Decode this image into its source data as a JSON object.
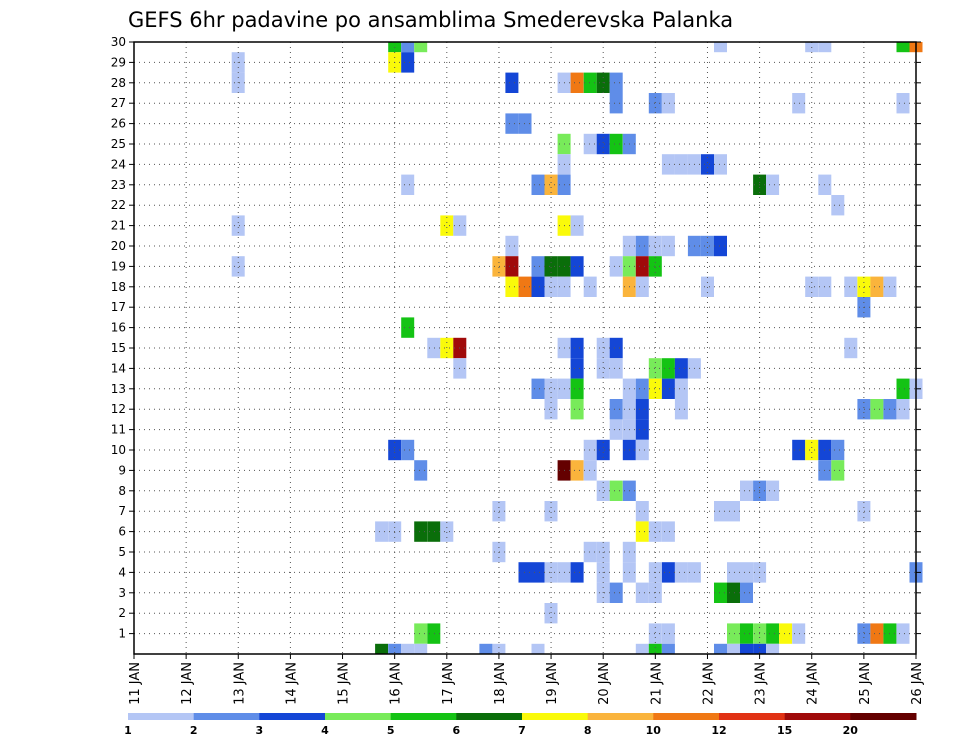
{
  "chart_data": {
    "type": "heatmap",
    "title": "GEFS 6hr padavine po ansamblima Smederevska Palanka",
    "y_ticks": [
      "1",
      "2",
      "3",
      "4",
      "5",
      "6",
      "7",
      "8",
      "9",
      "10",
      "11",
      "12",
      "13",
      "14",
      "15",
      "16",
      "17",
      "18",
      "19",
      "20",
      "21",
      "22",
      "23",
      "24",
      "25",
      "26",
      "27",
      "28",
      "29",
      "30"
    ],
    "x_ticks": [
      "11 JAN",
      "12 JAN",
      "13 JAN",
      "14 JAN",
      "15 JAN",
      "16 JAN",
      "17 JAN",
      "18 JAN",
      "19 JAN",
      "20 JAN",
      "21 JAN",
      "22 JAN",
      "23 JAN",
      "24 JAN",
      "25 JAN",
      "26 JAN"
    ],
    "xlim_days": [
      11,
      26
    ],
    "ylim": [
      0,
      30
    ],
    "grid": true,
    "legend": {
      "position": "bottom",
      "labels": [
        "1",
        "2",
        "3",
        "4",
        "5",
        "6",
        "7",
        "8",
        "10",
        "12",
        "15",
        "20"
      ],
      "colors": [
        "#b4c6f5",
        "#5f8de8",
        "#1446d6",
        "#78eb5a",
        "#14c314",
        "#0a6e0a",
        "#fafa0a",
        "#fab43c",
        "#f07814",
        "#e13214",
        "#a00a0a",
        "#640000"
      ]
    },
    "cells": [
      [
        30,
        16,
        5
      ],
      [
        30,
        16.25,
        2
      ],
      [
        30,
        16.5,
        4
      ],
      [
        30,
        22.25,
        1
      ],
      [
        30,
        24,
        1
      ],
      [
        30,
        24.25,
        1
      ],
      [
        30,
        25.75,
        5
      ],
      [
        30,
        26,
        9
      ],
      [
        29,
        13,
        1
      ],
      [
        29,
        16,
        7
      ],
      [
        29,
        16.25,
        3
      ],
      [
        28,
        13,
        1
      ],
      [
        28,
        18.25,
        3
      ],
      [
        28,
        19.25,
        1
      ],
      [
        28,
        19.5,
        9
      ],
      [
        28,
        19.75,
        5
      ],
      [
        28,
        20,
        6
      ],
      [
        28,
        20.25,
        2
      ],
      [
        27,
        20.25,
        2
      ],
      [
        27,
        21,
        2
      ],
      [
        27,
        21.25,
        1
      ],
      [
        27,
        23.75,
        1
      ],
      [
        27,
        25.75,
        1
      ],
      [
        26,
        18.25,
        2
      ],
      [
        26,
        18.5,
        2
      ],
      [
        25,
        19.25,
        4
      ],
      [
        25,
        19.75,
        1
      ],
      [
        25,
        20,
        3
      ],
      [
        25,
        20.25,
        5
      ],
      [
        25,
        20.5,
        2
      ],
      [
        24,
        19.25,
        1
      ],
      [
        24,
        21.25,
        1
      ],
      [
        24,
        21.5,
        1
      ],
      [
        24,
        21.75,
        1
      ],
      [
        24,
        22,
        3
      ],
      [
        24,
        22.25,
        1
      ],
      [
        23,
        16.25,
        1
      ],
      [
        23,
        18.75,
        2
      ],
      [
        23,
        19,
        8
      ],
      [
        23,
        19.25,
        2
      ],
      [
        23,
        23,
        6
      ],
      [
        23,
        23.25,
        1
      ],
      [
        23,
        24.25,
        1
      ],
      [
        22,
        24.5,
        1
      ],
      [
        21,
        13,
        1
      ],
      [
        21,
        17,
        7
      ],
      [
        21,
        17.25,
        1
      ],
      [
        21,
        19.25,
        7
      ],
      [
        21,
        19.5,
        1
      ],
      [
        20,
        18.25,
        1
      ],
      [
        20,
        20.5,
        1
      ],
      [
        20,
        20.75,
        2
      ],
      [
        20,
        21,
        1
      ],
      [
        20,
        21.25,
        1
      ],
      [
        20,
        21.75,
        2
      ],
      [
        20,
        22,
        2
      ],
      [
        20,
        22.25,
        3
      ],
      [
        19,
        13,
        1
      ],
      [
        19,
        18,
        8
      ],
      [
        19,
        18.25,
        11
      ],
      [
        19,
        18.75,
        2
      ],
      [
        19,
        19,
        6
      ],
      [
        19,
        19.25,
        6
      ],
      [
        19,
        19.5,
        3
      ],
      [
        19,
        20.25,
        1
      ],
      [
        19,
        20.5,
        4
      ],
      [
        19,
        20.75,
        11
      ],
      [
        19,
        21,
        5
      ],
      [
        18,
        18.25,
        7
      ],
      [
        18,
        18.5,
        9
      ],
      [
        18,
        18.75,
        3
      ],
      [
        18,
        19,
        1
      ],
      [
        18,
        19.25,
        1
      ],
      [
        18,
        19.75,
        1
      ],
      [
        18,
        20.5,
        8
      ],
      [
        18,
        20.75,
        1
      ],
      [
        18,
        22,
        1
      ],
      [
        18,
        24,
        1
      ],
      [
        18,
        24.25,
        1
      ],
      [
        18,
        24.75,
        1
      ],
      [
        18,
        25,
        7
      ],
      [
        18,
        25.25,
        8
      ],
      [
        18,
        25.5,
        1
      ],
      [
        17,
        25,
        2
      ],
      [
        16,
        16.25,
        5
      ],
      [
        15,
        16.75,
        1
      ],
      [
        15,
        17,
        7
      ],
      [
        15,
        17.25,
        11
      ],
      [
        15,
        19.25,
        1
      ],
      [
        15,
        19.5,
        3
      ],
      [
        15,
        20,
        1
      ],
      [
        15,
        20.25,
        3
      ],
      [
        15,
        24.75,
        1
      ],
      [
        14,
        17.25,
        1
      ],
      [
        14,
        19.5,
        3
      ],
      [
        14,
        20,
        1
      ],
      [
        14,
        20.25,
        1
      ],
      [
        14,
        21,
        4
      ],
      [
        14,
        21.25,
        5
      ],
      [
        14,
        21.5,
        3
      ],
      [
        14,
        21.75,
        1
      ],
      [
        13,
        18.75,
        2
      ],
      [
        13,
        19,
        1
      ],
      [
        13,
        19.25,
        1
      ],
      [
        13,
        19.5,
        5
      ],
      [
        13,
        20.5,
        1
      ],
      [
        13,
        20.75,
        2
      ],
      [
        13,
        21,
        7
      ],
      [
        13,
        21.25,
        3
      ],
      [
        13,
        21.5,
        1
      ],
      [
        13,
        25.75,
        5
      ],
      [
        13,
        26,
        1
      ],
      [
        12,
        19,
        1
      ],
      [
        12,
        19.5,
        4
      ],
      [
        12,
        20.25,
        2
      ],
      [
        12,
        20.5,
        1
      ],
      [
        12,
        20.75,
        3
      ],
      [
        12,
        21.5,
        1
      ],
      [
        12,
        25,
        2
      ],
      [
        12,
        25.25,
        4
      ],
      [
        12,
        25.5,
        2
      ],
      [
        12,
        25.75,
        1
      ],
      [
        11,
        20.25,
        1
      ],
      [
        11,
        20.5,
        1
      ],
      [
        11,
        20.75,
        3
      ],
      [
        10,
        16,
        3
      ],
      [
        10,
        16.25,
        2
      ],
      [
        10,
        19.75,
        1
      ],
      [
        10,
        20,
        3
      ],
      [
        10,
        20.5,
        3
      ],
      [
        10,
        20.75,
        1
      ],
      [
        10,
        23.75,
        3
      ],
      [
        10,
        24,
        7
      ],
      [
        10,
        24.25,
        3
      ],
      [
        10,
        24.5,
        2
      ],
      [
        9,
        16.5,
        2
      ],
      [
        9,
        19.25,
        12
      ],
      [
        9,
        19.5,
        8
      ],
      [
        9,
        19.75,
        1
      ],
      [
        9,
        24.25,
        2
      ],
      [
        9,
        24.5,
        4
      ],
      [
        8,
        20,
        1
      ],
      [
        8,
        20.25,
        4
      ],
      [
        8,
        20.5,
        2
      ],
      [
        8,
        22.75,
        1
      ],
      [
        8,
        23,
        2
      ],
      [
        8,
        23.25,
        1
      ],
      [
        7,
        18,
        1
      ],
      [
        7,
        19,
        1
      ],
      [
        7,
        20.75,
        1
      ],
      [
        7,
        22.25,
        1
      ],
      [
        7,
        22.5,
        1
      ],
      [
        7,
        25,
        1
      ],
      [
        6,
        15.75,
        1
      ],
      [
        6,
        16,
        1
      ],
      [
        6,
        16.5,
        6
      ],
      [
        6,
        16.75,
        6
      ],
      [
        6,
        17,
        1
      ],
      [
        6,
        20.75,
        7
      ],
      [
        6,
        21,
        1
      ],
      [
        6,
        21.25,
        1
      ],
      [
        5,
        18,
        1
      ],
      [
        5,
        19.75,
        1
      ],
      [
        5,
        20,
        1
      ],
      [
        5,
        20.5,
        1
      ],
      [
        4,
        18.5,
        3
      ],
      [
        4,
        18.75,
        3
      ],
      [
        4,
        19,
        1
      ],
      [
        4,
        19.25,
        1
      ],
      [
        4,
        19.5,
        3
      ],
      [
        4,
        20,
        1
      ],
      [
        4,
        20.5,
        1
      ],
      [
        4,
        21,
        1
      ],
      [
        4,
        21.25,
        3
      ],
      [
        4,
        21.5,
        1
      ],
      [
        4,
        21.75,
        1
      ],
      [
        4,
        22.5,
        1
      ],
      [
        4,
        22.75,
        1
      ],
      [
        4,
        23,
        1
      ],
      [
        4,
        26,
        2
      ],
      [
        3,
        20,
        1
      ],
      [
        3,
        20.25,
        2
      ],
      [
        3,
        20.75,
        1
      ],
      [
        3,
        21,
        1
      ],
      [
        3,
        22.25,
        5
      ],
      [
        3,
        22.5,
        6
      ],
      [
        3,
        22.75,
        2
      ],
      [
        2,
        19,
        1
      ],
      [
        1,
        16.5,
        4
      ],
      [
        1,
        16.75,
        5
      ],
      [
        1,
        21,
        1
      ],
      [
        1,
        21.25,
        1
      ],
      [
        1,
        22.5,
        4
      ],
      [
        1,
        22.75,
        5
      ],
      [
        1,
        23,
        4
      ],
      [
        1,
        23.25,
        5
      ],
      [
        1,
        23.5,
        7
      ],
      [
        1,
        23.75,
        1
      ],
      [
        1,
        25,
        2
      ],
      [
        1,
        25.25,
        9
      ],
      [
        1,
        25.5,
        5
      ],
      [
        1,
        25.75,
        1
      ],
      [
        0,
        15.75,
        6
      ],
      [
        0,
        16,
        2
      ],
      [
        0,
        16.25,
        1
      ],
      [
        0,
        16.5,
        1
      ],
      [
        0,
        17.75,
        2
      ],
      [
        0,
        18,
        1
      ],
      [
        0,
        18.75,
        1
      ],
      [
        0,
        20.75,
        1
      ],
      [
        0,
        21,
        5
      ],
      [
        0,
        21.25,
        2
      ],
      [
        0,
        22.25,
        2
      ],
      [
        0,
        22.5,
        1
      ],
      [
        0,
        22.75,
        3
      ],
      [
        0,
        23,
        3
      ],
      [
        0,
        23.25,
        1
      ]
    ]
  }
}
